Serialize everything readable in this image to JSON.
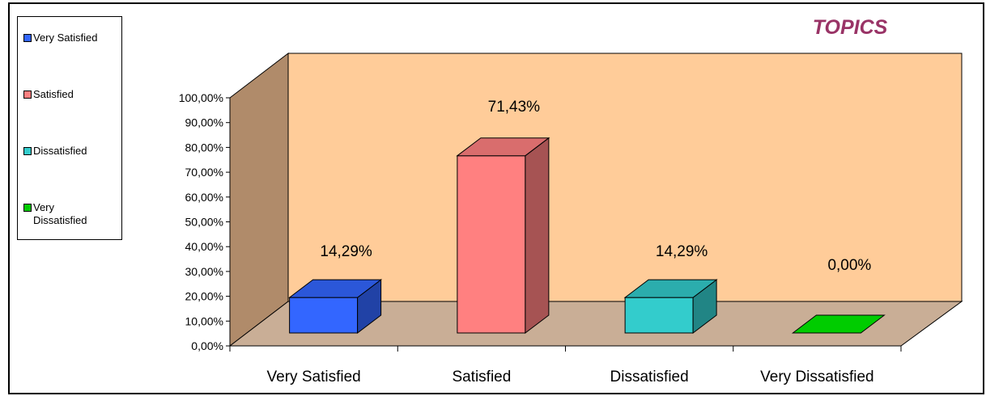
{
  "chart_data": {
    "type": "bar",
    "title": "TOPICS",
    "categories": [
      "Very Satisfied",
      "Satisfied",
      "Dissatisfied",
      "Very Dissatisfied"
    ],
    "values": [
      14.29,
      71.43,
      14.29,
      0.0
    ],
    "data_labels": [
      "14,29%",
      "71,43%",
      "14,29%",
      "0,00%"
    ],
    "yticks": [
      "0,00%",
      "10,00%",
      "20,00%",
      "30,00%",
      "40,00%",
      "50,00%",
      "60,00%",
      "70,00%",
      "80,00%",
      "90,00%",
      "100,00%"
    ],
    "ylim": [
      0,
      100
    ],
    "legend": [
      "Very Satisfied",
      "Satisfied",
      "Dissatisfied",
      "Very\nDissatisfied"
    ],
    "legend_position": "left",
    "three_d": true,
    "colors": {
      "bars": [
        "#3366ff",
        "#ff8080",
        "#33cccc",
        "#00cc00"
      ],
      "wall_back": "#ffcc99",
      "wall_side": "#b08b6a",
      "floor": "#c9ae96",
      "title": "#993366"
    }
  }
}
